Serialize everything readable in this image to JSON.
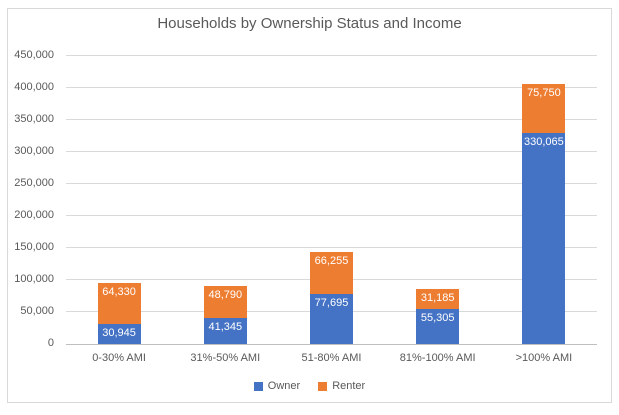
{
  "title": "Households by Ownership Status and Income",
  "colors": {
    "owner": "#4472C4",
    "renter": "#ED7D31",
    "gridline": "#D9D9D9",
    "zero_axis_line": "#BFBFBF",
    "axis_text": "#595959",
    "title_text": "#595959",
    "data_label_text": "#FFFFFF",
    "frame_border": "#D9D9D9",
    "background": "#FFFFFF"
  },
  "chart_data": {
    "type": "bar",
    "stacked": true,
    "title": "Households by Ownership Status and Income",
    "categories": [
      "0-30% AMI",
      "31%-50% AMI",
      "51-80% AMI",
      "81%-100% AMI",
      ">100% AMI"
    ],
    "series": [
      {
        "name": "Owner",
        "color": "#4472C4",
        "values": [
          30945,
          41345,
          77695,
          55305,
          330065
        ],
        "labels": [
          "30,945",
          "41,345",
          "77,695",
          "55,305",
          "330,065"
        ]
      },
      {
        "name": "Renter",
        "color": "#ED7D31",
        "values": [
          64330,
          48790,
          66255,
          31185,
          75750
        ],
        "labels": [
          "64,330",
          "48,790",
          "66,255",
          "31,185",
          "75,750"
        ]
      }
    ],
    "totals": [
      95275,
      90135,
      143950,
      86490,
      405815
    ],
    "xlabel": "",
    "ylabel": "",
    "ylim": [
      0,
      450000
    ],
    "ytick_step": 50000,
    "ytick_labels": [
      "0",
      "50,000",
      "100,000",
      "150,000",
      "200,000",
      "250,000",
      "300,000",
      "350,000",
      "400,000",
      "450,000"
    ],
    "grid": true,
    "legend_position": "bottom",
    "data_label_position": "inside-end"
  },
  "legend": {
    "items": [
      {
        "label": "Owner",
        "color": "#4472C4"
      },
      {
        "label": "Renter",
        "color": "#ED7D31"
      }
    ]
  }
}
